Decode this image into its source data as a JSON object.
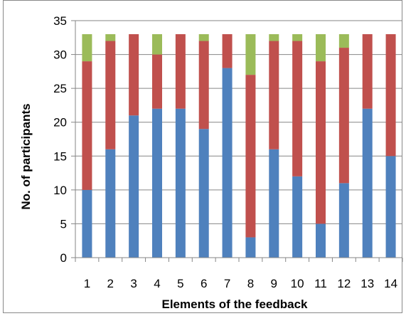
{
  "chart_data": {
    "type": "bar",
    "stacked": true,
    "title": "",
    "xlabel": "Elements of the feedback",
    "ylabel": "No. of participants",
    "categories": [
      "1",
      "2",
      "3",
      "4",
      "5",
      "6",
      "7",
      "8",
      "9",
      "10",
      "11",
      "12",
      "13",
      "14"
    ],
    "ylim": [
      0,
      35
    ],
    "yticks": [
      0,
      5,
      10,
      15,
      20,
      25,
      30,
      35
    ],
    "grid": true,
    "legend": "none",
    "series": [
      {
        "color": "#4F81BD",
        "values": [
          10,
          16,
          21,
          22,
          22,
          19,
          28,
          3,
          16,
          12,
          5,
          11,
          22,
          15
        ]
      },
      {
        "color": "#C0504D",
        "values": [
          19,
          16,
          12,
          8,
          11,
          13,
          5,
          24,
          16,
          20,
          24,
          20,
          11,
          18
        ]
      },
      {
        "color": "#9BBB59",
        "values": [
          4,
          1,
          0,
          3,
          0,
          1,
          0,
          6,
          1,
          1,
          4,
          2,
          0,
          0
        ]
      }
    ]
  }
}
